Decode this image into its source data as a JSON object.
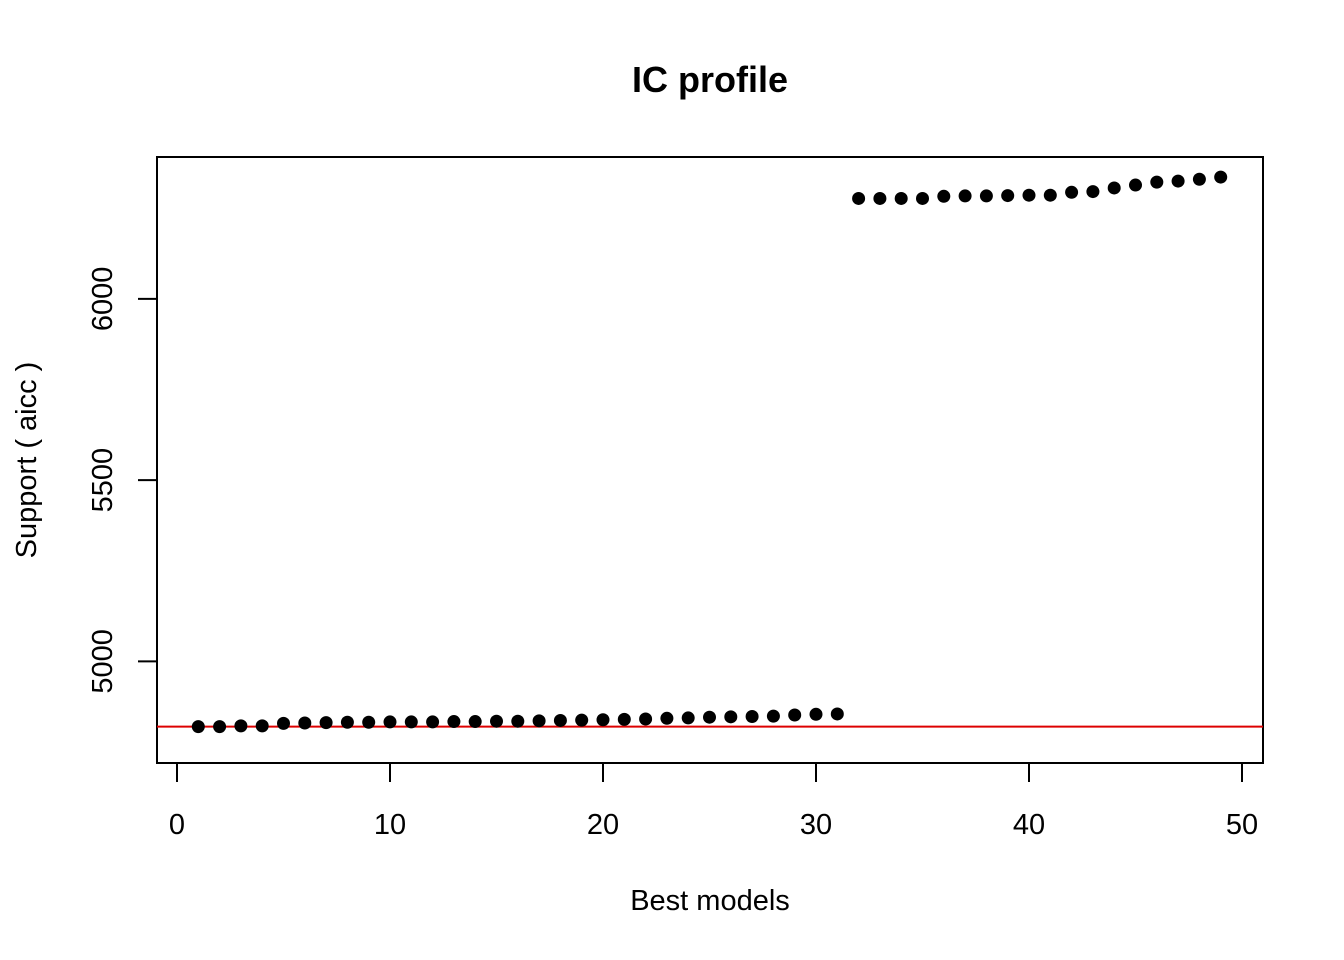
{
  "chart_data": {
    "type": "scatter",
    "title": "IC profile",
    "xlabel": "Best models",
    "ylabel": "Support ( aicc )",
    "xlim": [
      0,
      50
    ],
    "ylim": [
      4750,
      6350
    ],
    "xticks": [
      0,
      10,
      20,
      30,
      40,
      50
    ],
    "yticks": [
      5000,
      5500,
      6000
    ],
    "grid": false,
    "point_color": "#000000",
    "reference_line": {
      "y": 4820,
      "color": "#dd0000"
    },
    "x": [
      1,
      2,
      3,
      4,
      5,
      6,
      7,
      8,
      9,
      10,
      11,
      12,
      13,
      14,
      15,
      16,
      17,
      18,
      19,
      20,
      21,
      22,
      23,
      24,
      25,
      26,
      27,
      28,
      29,
      30,
      31,
      32,
      33,
      34,
      35,
      36,
      37,
      38,
      39,
      40,
      41,
      42,
      43,
      44,
      45,
      46,
      47,
      48,
      49
    ],
    "y": [
      4820,
      4820,
      4822,
      4822,
      4829,
      4830,
      4831,
      4832,
      4832,
      4833,
      4833,
      4833,
      4834,
      4834,
      4835,
      4835,
      4836,
      4837,
      4838,
      4839,
      4840,
      4841,
      4843,
      4844,
      4846,
      4847,
      4848,
      4849,
      4852,
      4854,
      4855,
      6277,
      6277,
      6277,
      6277,
      6283,
      6284,
      6284,
      6285,
      6286,
      6286,
      6294,
      6296,
      6306,
      6314,
      6322,
      6325,
      6330,
      6336
    ]
  }
}
